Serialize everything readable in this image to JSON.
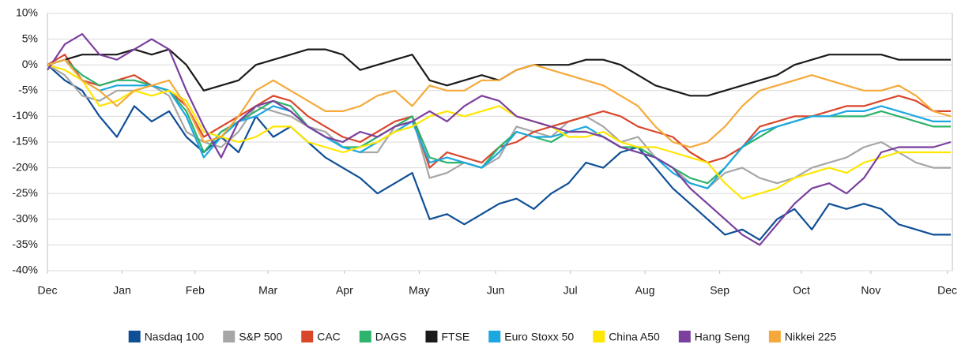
{
  "chart_data": {
    "type": "line",
    "x": [
      0,
      1,
      2,
      3,
      4,
      5,
      6,
      7,
      8,
      9,
      10,
      11,
      12,
      13,
      14,
      15,
      16,
      17,
      18,
      19,
      20,
      21,
      22,
      23,
      24,
      25,
      26,
      27,
      28,
      29,
      30,
      31,
      32,
      33,
      34,
      35,
      36,
      37,
      38,
      39,
      40,
      41,
      42,
      43,
      44,
      45,
      46,
      47,
      48,
      49,
      50,
      51,
      52
    ],
    "xlim": [
      0,
      52
    ],
    "xticks": [
      {
        "value": 0,
        "label": "Dec"
      },
      {
        "value": 4.3,
        "label": "Jan"
      },
      {
        "value": 8.5,
        "label": "Feb"
      },
      {
        "value": 12.7,
        "label": "Mar"
      },
      {
        "value": 17.1,
        "label": "Apr"
      },
      {
        "value": 21.4,
        "label": "May"
      },
      {
        "value": 25.8,
        "label": "Jun"
      },
      {
        "value": 30.1,
        "label": "Jul"
      },
      {
        "value": 34.4,
        "label": "Aug"
      },
      {
        "value": 38.7,
        "label": "Sep"
      },
      {
        "value": 43.4,
        "label": "Oct"
      },
      {
        "value": 47.4,
        "label": "Nov"
      },
      {
        "value": 51.8,
        "label": "Dec"
      }
    ],
    "ylim": [
      -40,
      10
    ],
    "yticks": [
      {
        "value": -40,
        "label": "-40%"
      },
      {
        "value": -35,
        "label": "-35%"
      },
      {
        "value": -30,
        "label": "-30%"
      },
      {
        "value": -25,
        "label": "-25%"
      },
      {
        "value": -20,
        "label": "-20%"
      },
      {
        "value": -15,
        "label": "-15%"
      },
      {
        "value": -10,
        "label": "-10%"
      },
      {
        "value": -5,
        "label": "-5%"
      },
      {
        "value": 0,
        "label": "0%"
      },
      {
        "value": 5,
        "label": "5%"
      },
      {
        "value": 10,
        "label": "10%"
      }
    ],
    "grid": true,
    "series": [
      {
        "name": "Nasdaq 100",
        "color": "#0f4f96",
        "values": [
          0,
          -3,
          -5,
          -10,
          -14,
          -8,
          -11,
          -9,
          -14,
          -17,
          -14,
          -17,
          -10,
          -14,
          -12,
          -15,
          -18,
          -20,
          -22,
          -25,
          -23,
          -21,
          -30,
          -29,
          -31,
          -29,
          -27,
          -26,
          -28,
          -25,
          -23,
          -19,
          -20,
          -17,
          -16,
          -20,
          -24,
          -27,
          -30,
          -33,
          -32,
          -34,
          -30,
          -28,
          -32,
          -27,
          -28,
          -27,
          -28,
          -31,
          -32,
          -33,
          -33
        ]
      },
      {
        "name": "S&P 500",
        "color": "#a6a6a6",
        "values": [
          0,
          -2,
          -6,
          -7,
          -5,
          -5,
          -4,
          -6,
          -13,
          -15,
          -16,
          -13,
          -8,
          -9,
          -10,
          -12,
          -13,
          -16,
          -17,
          -17,
          -12,
          -10,
          -22,
          -21,
          -19,
          -20,
          -18,
          -12,
          -13,
          -14,
          -11,
          -10,
          -12,
          -15,
          -14,
          -18,
          -20,
          -23,
          -24,
          -21,
          -20,
          -22,
          -23,
          -22,
          -20,
          -19,
          -18,
          -16,
          -15,
          -17,
          -19,
          -20,
          -20
        ]
      },
      {
        "name": "CAC",
        "color": "#d9472b",
        "values": [
          0,
          2,
          -3,
          -4,
          -3,
          -2,
          -4,
          -5,
          -8,
          -14,
          -12,
          -10,
          -8,
          -6,
          -7,
          -10,
          -12,
          -14,
          -15,
          -13,
          -11,
          -10,
          -20,
          -17,
          -18,
          -19,
          -16,
          -15,
          -13,
          -12,
          -11,
          -10,
          -9,
          -10,
          -12,
          -13,
          -14,
          -17,
          -19,
          -18,
          -16,
          -12,
          -11,
          -10,
          -10,
          -9,
          -8,
          -8,
          -7,
          -6,
          -7,
          -9,
          -9
        ]
      },
      {
        "name": "DAGS",
        "color": "#2db36b",
        "values": [
          0,
          1,
          -2,
          -4,
          -3,
          -3,
          -4,
          -5,
          -9,
          -17,
          -13,
          -11,
          -9,
          -7,
          -8,
          -12,
          -14,
          -16,
          -16,
          -14,
          -12,
          -10,
          -18,
          -19,
          -19,
          -20,
          -16,
          -13,
          -14,
          -15,
          -13,
          -13,
          -14,
          -16,
          -16,
          -18,
          -20,
          -22,
          -23,
          -20,
          -16,
          -14,
          -12,
          -11,
          -10,
          -10,
          -10,
          -10,
          -9,
          -10,
          -11,
          -12,
          -12
        ]
      },
      {
        "name": "FTSE",
        "color": "#1a1a1a",
        "values": [
          0,
          1,
          2,
          2,
          2,
          3,
          2,
          3,
          0,
          -5,
          -4,
          -3,
          0,
          1,
          2,
          3,
          3,
          2,
          -1,
          0,
          1,
          2,
          -3,
          -4,
          -3,
          -2,
          -3,
          -1,
          0,
          0,
          0,
          1,
          1,
          0,
          -2,
          -4,
          -5,
          -6,
          -6,
          -5,
          -4,
          -3,
          -2,
          0,
          1,
          2,
          2,
          2,
          2,
          1,
          1,
          1,
          1
        ]
      },
      {
        "name": "Euro Stoxx 50",
        "color": "#1ca7e0",
        "values": [
          0,
          1,
          -3,
          -5,
          -4,
          -4,
          -4,
          -5,
          -10,
          -18,
          -14,
          -11,
          -10,
          -8,
          -9,
          -12,
          -14,
          -16,
          -17,
          -15,
          -13,
          -11,
          -19,
          -18,
          -19,
          -20,
          -17,
          -13,
          -14,
          -14,
          -13,
          -12,
          -14,
          -16,
          -17,
          -18,
          -21,
          -23,
          -24,
          -20,
          -16,
          -13,
          -12,
          -11,
          -10,
          -10,
          -9,
          -9,
          -8,
          -9,
          -10,
          -11,
          -11
        ]
      },
      {
        "name": "China A50",
        "color": "#ffe600",
        "values": [
          0,
          -1,
          -3,
          -8,
          -7,
          -5,
          -6,
          -5,
          -7,
          -13,
          -14,
          -15,
          -14,
          -12,
          -12,
          -15,
          -16,
          -17,
          -16,
          -15,
          -13,
          -12,
          -10,
          -9,
          -10,
          -9,
          -8,
          -10,
          -11,
          -12,
          -14,
          -14,
          -13,
          -15,
          -16,
          -16,
          -17,
          -18,
          -19,
          -23,
          -26,
          -25,
          -24,
          -22,
          -21,
          -20,
          -21,
          -19,
          -18,
          -17,
          -17,
          -17,
          -17
        ]
      },
      {
        "name": "Hang Seng",
        "color": "#7b3f9e",
        "values": [
          -1,
          4,
          6,
          2,
          1,
          3,
          5,
          3,
          -5,
          -12,
          -18,
          -11,
          -8,
          -7,
          -9,
          -12,
          -14,
          -15,
          -13,
          -14,
          -12,
          -11,
          -9,
          -11,
          -8,
          -6,
          -7,
          -10,
          -11,
          -12,
          -13,
          -13,
          -14,
          -16,
          -17,
          -18,
          -20,
          -24,
          -27,
          -30,
          -33,
          -35,
          -31,
          -27,
          -24,
          -23,
          -25,
          -22,
          -17,
          -16,
          -16,
          -16,
          -15
        ]
      },
      {
        "name": "Nikkei 225",
        "color": "#f5a93a",
        "values": [
          0,
          1,
          -3,
          -5,
          -8,
          -5,
          -4,
          -3,
          -8,
          -15,
          -14,
          -10,
          -5,
          -3,
          -5,
          -7,
          -9,
          -9,
          -8,
          -6,
          -5,
          -8,
          -4,
          -5,
          -5,
          -3,
          -3,
          -1,
          0,
          -1,
          -2,
          -3,
          -4,
          -6,
          -8,
          -12,
          -15,
          -16,
          -15,
          -12,
          -8,
          -5,
          -4,
          -3,
          -2,
          -3,
          -4,
          -5,
          -5,
          -4,
          -6,
          -9,
          -10
        ]
      }
    ]
  }
}
